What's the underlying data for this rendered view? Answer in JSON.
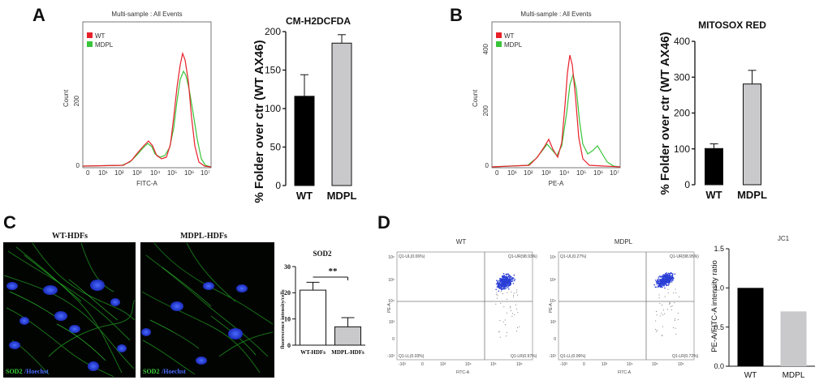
{
  "panels": {
    "a": "A",
    "b": "B",
    "c": "C",
    "d": "D"
  },
  "panel_a": {
    "hist_title": "Multi-sample : All Events",
    "legend": [
      "WT",
      "MDPL"
    ],
    "y_label": "Count",
    "y_ticks": [
      "0",
      "200"
    ],
    "x_label": "FITC-A",
    "x_ticks": [
      "0",
      "10¹",
      "10²",
      "10³",
      "10⁴",
      "10⁵",
      "10⁶",
      "10⁷"
    ]
  },
  "panel_b": {
    "hist_title": "Multi-sample : All Events",
    "legend": [
      "WT",
      "MDPL"
    ],
    "y_label": "Count",
    "y_ticks": [
      "0",
      "200",
      "400"
    ],
    "x_label": "PE-A",
    "x_ticks": [
      "0",
      "10¹",
      "10²",
      "10³",
      "10⁴",
      "10⁵",
      "10⁶",
      "10⁷"
    ]
  },
  "panel_c": {
    "image_labels": [
      "WT-HDFs",
      "MDPL-HDFs"
    ],
    "stain_green": "SOD2",
    "stain_blue": "/Hoechst",
    "sig": "**"
  },
  "panel_d": {
    "plot_titles": [
      "WT",
      "MDPL"
    ],
    "x_label": "FITC-A",
    "y_label": "PE-A",
    "x_ticks": [
      "-10³",
      "0",
      "10³",
      "10⁴",
      "10⁵",
      "10⁶"
    ],
    "y_ticks": [
      "10⁶",
      "10⁵",
      "10⁴",
      "10³",
      "0",
      "-10³"
    ],
    "quad_wt": [
      "Q1-UL(0.06%)",
      "Q1-UR(98.93%)",
      "Q1-LL(0.03%)",
      "Q1-LR(0.97%)"
    ],
    "quad_mdpl": [
      "Q1-UL(0.27%)",
      "Q1-UR(98.95%)",
      "Q1-LL(0.06%)",
      "Q1-LR(0.72%)"
    ]
  },
  "colors": {
    "wt_hist": "#e8202a",
    "mdpl_hist": "#39c43a",
    "black_bar": "#000000",
    "grey_bar": "#c9c9cb",
    "scatter": "#2b3fd6"
  },
  "chart_data": [
    {
      "type": "bar",
      "id": "cm-h2dcfda",
      "title": "CM-H2DCFDA",
      "categories": [
        "WT",
        "MDPL"
      ],
      "values": [
        116,
        185
      ],
      "errors": [
        28,
        11
      ],
      "ylabel": "% Folder over ctr (WT AX46)",
      "ylim": [
        0,
        200
      ],
      "yticks": [
        0,
        50,
        100,
        150,
        200
      ]
    },
    {
      "type": "bar",
      "id": "mitosox",
      "title": "MITOSOX RED",
      "categories": [
        "WT",
        "MDPL"
      ],
      "values": [
        101,
        281
      ],
      "errors": [
        13,
        38
      ],
      "ylabel": "% Folder over ctr (WT AX46)",
      "ylim": [
        0,
        400
      ],
      "yticks": [
        0,
        100,
        200,
        300,
        400
      ]
    },
    {
      "type": "bar",
      "id": "sod2",
      "title": "SOD2",
      "categories": [
        "WT-HDFs",
        "MDPL-HDFs"
      ],
      "values": [
        21,
        7
      ],
      "errors": [
        3,
        3.5
      ],
      "ylabel": "fluorescence intensity/cells",
      "ylim": [
        0,
        30
      ],
      "yticks": [
        0,
        10,
        20,
        30
      ]
    },
    {
      "type": "bar",
      "id": "jc1",
      "title": "JC1",
      "categories": [
        "WT",
        "MDPL"
      ],
      "values": [
        1.0,
        0.7
      ],
      "ylabel": "PE-A/FITC-A intensity ratio",
      "ylim": [
        0,
        1.5
      ],
      "yticks": [
        0.0,
        0.5,
        1.0,
        1.5
      ]
    }
  ]
}
